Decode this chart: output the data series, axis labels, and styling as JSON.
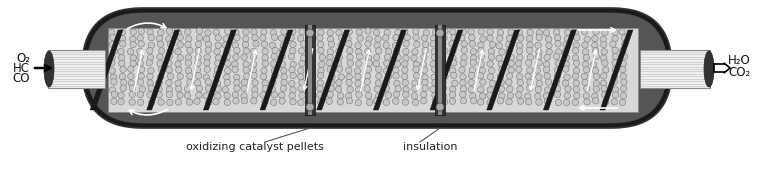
{
  "bg_color": "#ffffff",
  "fig_width": 7.6,
  "fig_height": 1.81,
  "dpi": 100,
  "label_left_gases": [
    "CO",
    "HC",
    "O₂"
  ],
  "label_right_gases": [
    "CO₂",
    "H₂O"
  ],
  "label1_text": "oxidizing catalyst pellets",
  "label2_text": "insulation",
  "text_color": "#111111",
  "font_size": 8.5,
  "outer_shell_color": "#1a1a1a",
  "inner_dark_color": "#2d2d2d",
  "pellet_bg_color": "#d8d8d8",
  "pellet_dot_color": "#aaaaaa",
  "pellet_dot_edge": "#777777",
  "fin_color": "#1a1a1a",
  "arrow_color": "white",
  "pipe_outer_color": "#bbbbbb",
  "pipe_inner_color": "#e8e8e8",
  "pipe_dark_end": "#333333"
}
